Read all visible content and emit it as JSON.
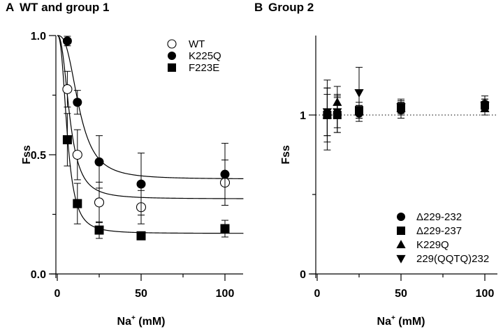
{
  "chart_data": [
    {
      "panel_letter": "A",
      "title": "WT and group 1",
      "type": "scatter",
      "xlabel": "Na",
      "xlabel_sup": "+",
      "xlabel_unit": " (mM)",
      "ylabel": "Fss",
      "xlim": [
        -4,
        111
      ],
      "ylim": [
        0,
        1.0
      ],
      "xticks": [
        0,
        50,
        100
      ],
      "xminor": [
        25,
        75
      ],
      "yticks": [
        0.0,
        0.5,
        1.0
      ],
      "ytick_labels": [
        "0.0",
        "0.5",
        "1.0"
      ],
      "yminor": [
        0.25,
        0.75
      ],
      "legend_position": "top-right",
      "series": [
        {
          "name": "WT",
          "marker": "circle-open",
          "x": [
            6,
            12,
            25,
            50,
            100
          ],
          "y": [
            0.775,
            0.5,
            0.3,
            0.28,
            0.383
          ],
          "err": [
            0.075,
            0.105,
            0.085,
            0.07,
            0.095
          ],
          "fit": {
            "ymin": 0.315,
            "x50": 7.5,
            "n": 2.5
          }
        },
        {
          "name": "K225Q",
          "marker": "circle-filled",
          "x": [
            6,
            12,
            25,
            50,
            100
          ],
          "y": [
            0.977,
            0.72,
            0.47,
            0.377,
            0.418
          ],
          "err": [
            0.02,
            0.05,
            0.11,
            0.13,
            0.13
          ],
          "fit": {
            "ymin": 0.398,
            "x50": 13.0,
            "n": 2.8
          }
        },
        {
          "name": "F223E",
          "marker": "square-filled",
          "x": [
            6,
            12,
            25,
            50,
            100
          ],
          "y": [
            0.563,
            0.295,
            0.184,
            0.16,
            0.19
          ],
          "err": [
            0.11,
            0.085,
            0.035,
            0.012,
            0.035
          ],
          "fit": {
            "ymin": 0.17,
            "x50": 6.0,
            "n": 2.6
          }
        }
      ]
    },
    {
      "panel_letter": "B",
      "title": "Group 2",
      "type": "scatter",
      "xlabel": "Na",
      "xlabel_sup": "+",
      "xlabel_unit": " (mM)",
      "ylabel": "Fss",
      "xlim": [
        -4,
        107
      ],
      "ylim": [
        0,
        1.5
      ],
      "xticks": [
        0,
        50,
        100
      ],
      "xminor": [
        25,
        75
      ],
      "yticks": [
        0,
        1
      ],
      "ytick_labels": [
        "0",
        "1"
      ],
      "yminor": [
        0.5
      ],
      "reference_line_y": 1,
      "legend_position": "bottom-right",
      "series": [
        {
          "name": "Δ229-232",
          "marker": "circle-filled",
          "x": [
            6,
            12,
            25,
            50,
            100
          ],
          "y": [
            1.0,
            1.01,
            1.01,
            1.03,
            1.07
          ],
          "err": [
            0.17,
            0.12,
            0.05,
            0.05,
            0.05
          ]
        },
        {
          "name": "Δ229-237",
          "marker": "square-filled",
          "x": [
            6,
            12,
            25,
            50,
            100
          ],
          "y": [
            1.0,
            1.0,
            1.03,
            1.05,
            1.06
          ],
          "err": [
            0.22,
            0.11,
            0.05,
            0.05,
            0.04
          ]
        },
        {
          "name": "K229Q",
          "marker": "triangle-up-filled",
          "x": [
            6,
            12,
            25,
            50,
            100
          ],
          "y": [
            1.0,
            1.08,
            1.02,
            1.04,
            1.04
          ],
          "err": [
            0.13,
            0.1,
            0.04,
            0.04,
            0.04
          ]
        },
        {
          "name": "229(QQTQ)232",
          "marker": "triangle-down-filled",
          "x": [
            6,
            12,
            25,
            50,
            100
          ],
          "y": [
            1.02,
            1.02,
            1.14,
            1.05,
            1.06
          ],
          "err": [
            0.15,
            0.1,
            0.16,
            0.04,
            0.04
          ]
        }
      ]
    }
  ]
}
